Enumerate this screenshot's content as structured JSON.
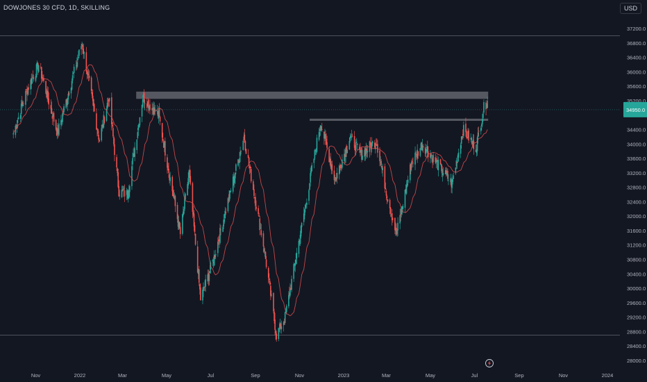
{
  "chart_title": "DOWJONES 30 CFD, 1D, SKILLING",
  "currency_label": "USD",
  "colors": {
    "background": "#131722",
    "up": "#26a69a",
    "down": "#ef5350",
    "ma": "#e05050",
    "zone": "#8e8e96",
    "axis_text": "#b2b5be",
    "current_price_bg": "#26a69a"
  },
  "icons": {
    "bottom_logo": "tradingview-lightning-icon"
  },
  "chart_data": {
    "type": "candlestick",
    "title": "DOWJONES 30 CFD, 1D, SKILLING",
    "ylim": [
      27700,
      37700
    ],
    "y_ticks": [
      "37200.0",
      "36800.0",
      "36400.0",
      "36000.0",
      "35600.0",
      "35200.0",
      "34800.0",
      "34400.0",
      "34000.0",
      "33600.0",
      "33200.0",
      "32800.0",
      "32400.0",
      "32000.0",
      "31600.0",
      "31200.0",
      "30800.0",
      "30400.0",
      "30000.0",
      "29600.0",
      "29200.0",
      "28800.0",
      "28400.0",
      "28000.0"
    ],
    "x_ticks": [
      "Nov",
      "2022",
      "Mar",
      "May",
      "Jul",
      "Sep",
      "Nov",
      "2023",
      "Mar",
      "May",
      "Jul",
      "Sep",
      "Nov",
      "2024"
    ],
    "current_price": 34950,
    "grid": false,
    "horizontal_lines": [
      37000,
      28700
    ],
    "resistance_zones": [
      {
        "from": "2022-03-20",
        "to": "2023-07-20",
        "low": 35250,
        "high": 35450
      },
      {
        "from": "2022-11-15",
        "to": "2023-07-20",
        "low": 34640,
        "high": 34700
      }
    ],
    "price_path": [
      [
        "2021-10-01",
        34300
      ],
      [
        "2021-10-20",
        35500
      ],
      [
        "2021-11-05",
        36200
      ],
      [
        "2021-12-01",
        34300
      ],
      [
        "2021-12-20",
        35700
      ],
      [
        "2022-01-04",
        36800
      ],
      [
        "2022-01-28",
        34100
      ],
      [
        "2022-02-10",
        35300
      ],
      [
        "2022-02-24",
        32700
      ],
      [
        "2022-03-08",
        32600
      ],
      [
        "2022-03-29",
        35300
      ],
      [
        "2022-04-20",
        34800
      ],
      [
        "2022-05-20",
        31500
      ],
      [
        "2022-06-01",
        33200
      ],
      [
        "2022-06-17",
        29700
      ],
      [
        "2022-07-05",
        30800
      ],
      [
        "2022-08-16",
        34200
      ],
      [
        "2022-09-13",
        31100
      ],
      [
        "2022-09-30",
        28700
      ],
      [
        "2022-10-12",
        29200
      ],
      [
        "2022-11-30",
        34600
      ],
      [
        "2022-12-20",
        33000
      ],
      [
        "2023-01-10",
        34200
      ],
      [
        "2023-01-25",
        33700
      ],
      [
        "2023-02-15",
        34100
      ],
      [
        "2023-03-01",
        32700
      ],
      [
        "2023-03-15",
        31500
      ],
      [
        "2023-04-05",
        33500
      ],
      [
        "2023-04-20",
        34000
      ],
      [
        "2023-05-05",
        33600
      ],
      [
        "2023-05-31",
        32900
      ],
      [
        "2023-06-15",
        34400
      ],
      [
        "2023-07-03",
        33900
      ],
      [
        "2023-07-14",
        35000
      ],
      [
        "2023-07-19",
        35200
      ]
    ]
  }
}
